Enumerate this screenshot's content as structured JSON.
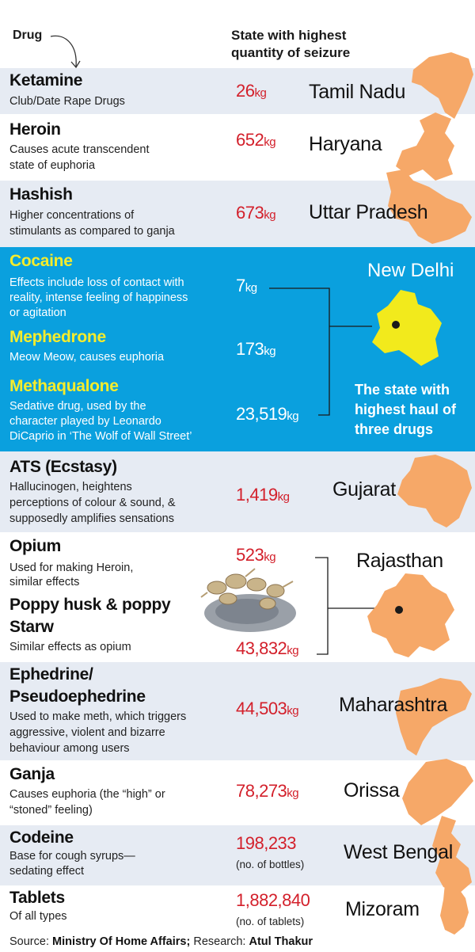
{
  "header": {
    "drug_label": "Drug",
    "state_label_line1": "State with highest",
    "state_label_line2": "quantity of seizure"
  },
  "rows": [
    {
      "name": "Ketamine",
      "desc": [
        "Club/Date Rape Drugs"
      ],
      "qty": "26",
      "unit": "kg",
      "state": "Tamil Nadu"
    },
    {
      "name": "Heroin",
      "desc": [
        "Causes acute transcendent",
        "state of euphoria"
      ],
      "qty": "652",
      "unit": "kg",
      "state": "Haryana"
    },
    {
      "name": "Hashish",
      "desc": [
        "Higher concentrations of",
        "stimulants as compared to ganja"
      ],
      "qty": "673",
      "unit": "kg",
      "state": "Uttar Pradesh"
    }
  ],
  "delhi": {
    "state": "New Delhi",
    "note": [
      "The state with",
      "highest haul of",
      "three drugs"
    ],
    "drugs": [
      {
        "name": "Cocaine",
        "desc": [
          "Effects include loss of contact with",
          "reality, intense feeling of happiness",
          "or agitation"
        ],
        "qty": "7",
        "unit": "kg"
      },
      {
        "name": "Mephedrone",
        "desc": [
          "Meow Meow, causes euphoria"
        ],
        "qty": "173",
        "unit": "kg"
      },
      {
        "name": "Methaqualone",
        "desc": [
          "Sedative drug, used by the",
          "character played by Leonardo",
          "DiCaprio in ‘The Wolf of Wall Street’"
        ],
        "qty": "23,519",
        "unit": "kg"
      }
    ]
  },
  "ats": {
    "name": "ATS (Ecstasy)",
    "desc": [
      "Hallucinogen, heightens",
      "perceptions of colour & sound, &",
      "supposedly amplifies sensations"
    ],
    "qty": "1,419",
    "unit": "kg",
    "state": "Gujarat"
  },
  "rajasthan": {
    "state": "Rajasthan",
    "drugs": [
      {
        "name": "Opium",
        "desc": [
          "Used for making Heroin,",
          "similar effects"
        ],
        "qty": "523",
        "unit": "kg"
      },
      {
        "name": "Poppy husk & poppy",
        "name2": "Starw",
        "desc": [
          "Similar effects as opium"
        ],
        "qty": "43,832",
        "unit": "kg"
      }
    ]
  },
  "ephedrine": {
    "name": "Ephedrine/",
    "name2": "Pseudoephedrine",
    "desc": [
      "Used to make meth, which triggers",
      "aggressive, violent and bizarre",
      "behaviour among users"
    ],
    "qty": "44,503",
    "unit": "kg",
    "state": "Maharashtra"
  },
  "ganja": {
    "name": "Ganja",
    "desc": [
      "Causes euphoria (the “high” or",
      "“stoned” feeling)"
    ],
    "qty": "78,273",
    "unit": "kg",
    "state": "Orissa"
  },
  "codeine": {
    "name": "Codeine",
    "desc": [
      "Base for cough syrups—",
      "sedating effect"
    ],
    "qty": "198,233",
    "sub": "(no. of bottles)",
    "state": "West Bengal"
  },
  "tablets": {
    "name": "Tablets",
    "desc": [
      "Of all types"
    ],
    "qty": "1,882,840",
    "sub": "(no. of tablets)",
    "state": "Mizoram"
  },
  "footer": {
    "source_label": "Source:",
    "source": "Ministry Of Home Affairs;",
    "research_label": "Research:",
    "research": "Atul Thakur"
  },
  "colors": {
    "shade": "#e6ebf3",
    "blue_panel": "#0aa0de",
    "qty_red": "#d3202b",
    "drug_yellow": "#f5ec2c",
    "map_orange": "#f6a868",
    "delhi_yellow": "#f2ea1c"
  },
  "icons": {
    "poppy_image": "poppy-husk-photo",
    "arrow": "curved-arrow-icon"
  }
}
